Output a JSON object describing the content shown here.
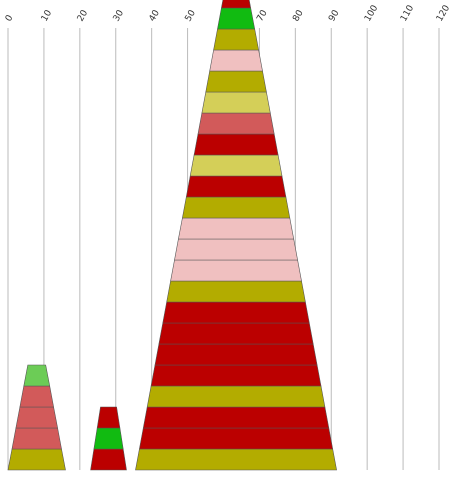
{
  "chart_data": {
    "type": "stacked-trapezoid",
    "title": "",
    "xlabel": "",
    "ylabel": "",
    "xlim": [
      0,
      120
    ],
    "x_ticks": [
      "0",
      "10",
      "20",
      "30",
      "40",
      "50",
      "60",
      "70",
      "80",
      "90",
      "100",
      "110",
      "120"
    ],
    "grid": true,
    "palette": {
      "dark_red": "#bb0000",
      "green": "#11bb11",
      "olive": "#b3ac00",
      "pink": "#f0c0c0",
      "khaki": "#d4cf58",
      "salmon": "#d25a5a",
      "light_green": "#6ccc56"
    },
    "stacks": [
      {
        "center": 8,
        "bottom_width": 16,
        "top_width": 5,
        "layers": [
          "olive",
          "salmon",
          "salmon",
          "salmon",
          "light_green"
        ]
      },
      {
        "center": 28,
        "bottom_width": 10,
        "top_width": 4.5,
        "layers": [
          "dark_red",
          "green",
          "dark_red"
        ]
      },
      {
        "center": 63.5,
        "bottom_width": 56,
        "top_width": 6,
        "layers": [
          "olive",
          "dark_red",
          "dark_red",
          "olive",
          "dark_red",
          "dark_red",
          "dark_red",
          "dark_red",
          "olive",
          "pink",
          "pink",
          "pink",
          "olive",
          "dark_red",
          "khaki",
          "dark_red",
          "salmon",
          "khaki",
          "olive",
          "pink",
          "olive",
          "green",
          "dark_red"
        ]
      }
    ]
  }
}
